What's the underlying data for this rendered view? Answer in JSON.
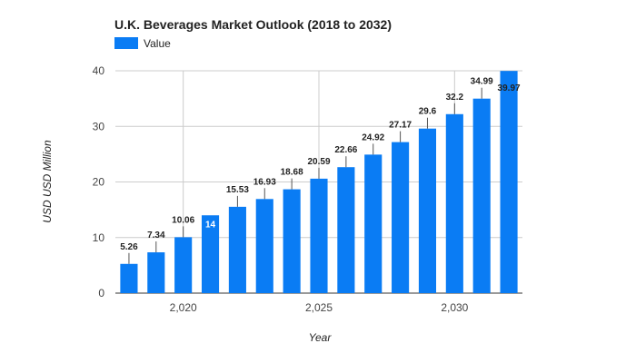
{
  "chart_data": {
    "type": "bar",
    "title": "U.K.  Beverages Market Outlook (2018 to 2032)",
    "xlabel": "Year",
    "ylabel": "USD USD Million",
    "legend": {
      "position": "top-left",
      "entries": [
        "Value"
      ]
    },
    "series": [
      {
        "name": "Value",
        "color": "#0a7cf4",
        "x": [
          2018,
          2019,
          2020,
          2021,
          2022,
          2023,
          2024,
          2025,
          2026,
          2027,
          2028,
          2029,
          2030,
          2031,
          2032
        ],
        "values": [
          5.26,
          7.34,
          10.06,
          14,
          15.53,
          16.93,
          18.68,
          20.59,
          22.66,
          24.92,
          27.17,
          29.6,
          32.2,
          34.99,
          39.97
        ],
        "labels": [
          "5.26",
          "7.34",
          "10.06",
          "14",
          "15.53",
          "16.93",
          "18.68",
          "20.59",
          "22.66",
          "24.92",
          "27.17",
          "29.6",
          "32.2",
          "34.99",
          "39.97"
        ]
      }
    ],
    "ylim": [
      0,
      40
    ],
    "yticks": [
      0,
      10,
      20,
      30,
      40
    ],
    "ytick_labels": [
      "0",
      "10",
      "20",
      "30",
      "40"
    ],
    "xticks": [
      2020,
      2025,
      2030
    ],
    "xtick_labels": [
      "2,020",
      "2,025",
      "2,030"
    ],
    "xlim": [
      2017.5,
      2032.5
    ],
    "grid": true
  }
}
